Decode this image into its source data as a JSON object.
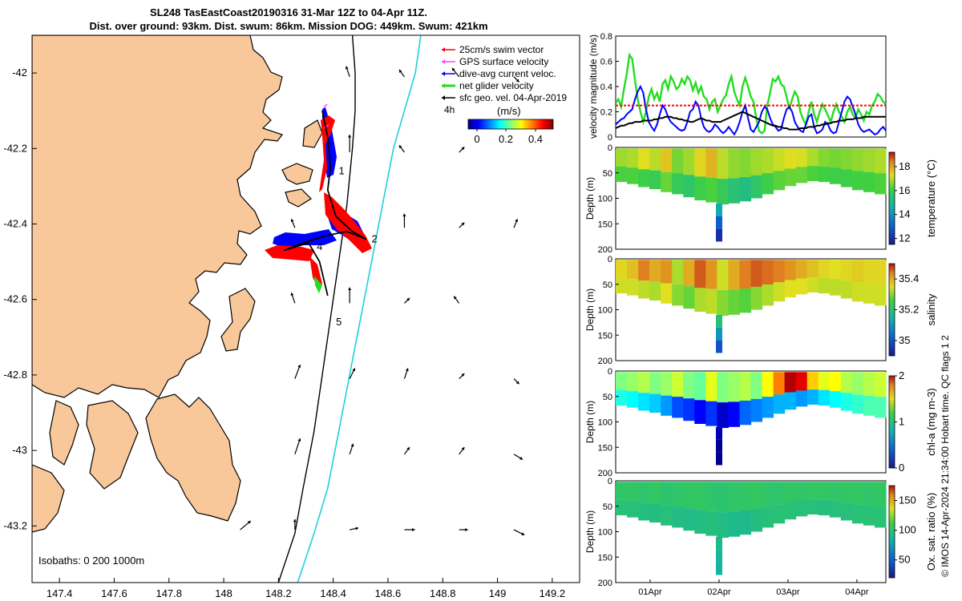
{
  "title_line1": "SL248 TasEastCoast20190316 31-Mar 12Z to 04-Apr 11Z.",
  "title_line2": "Dist. over ground: 93km. Dist. swum: 86km. Mission DOG: 449km. Swum: 421km",
  "footer_credit": "© IMOS 14-Apr-2024 21:34:00 Hobart time. QC flags 1  2",
  "colors": {
    "land": "#f8c89a",
    "coast_outline": "#000000",
    "isobath_200": "#000000",
    "isobath_1000": "#1ed0dc",
    "dive_avg": "#0000ff",
    "glider_net": "#22dd22",
    "swim_vector": "#ff0000",
    "gps_velocity": "#ff44ff",
    "track": "#000000"
  },
  "chart_data": [
    {
      "id": "map",
      "type": "scatter",
      "x_ticks": [
        147.4,
        147.6,
        147.8,
        148,
        148.2,
        148.4,
        148.6,
        148.8,
        149,
        149.2
      ],
      "y_ticks": [
        -42,
        -42.2,
        -42.4,
        -42.6,
        -42.8,
        -43,
        -43.2
      ],
      "xlim": [
        147.3,
        149.3
      ],
      "ylim": [
        -43.35,
        -41.9
      ],
      "isobaths_label": "Isobaths: 0   200   1000m",
      "speed_legend_label": "(m/s)",
      "speed_ticks": [
        "0",
        "0.2",
        "0.4"
      ],
      "time_step_label": "4h",
      "legend": [
        {
          "label": "25cm/s swim vector",
          "color": "#ff0000"
        },
        {
          "label": "GPS surface velocity",
          "color": "#ff44ff"
        },
        {
          "label": "dive-avg current veloc.",
          "color": "#0000ff"
        },
        {
          "label": "net glider velocity",
          "color": "#22dd22"
        },
        {
          "label": "sfc geo. vel. 04-Apr-2019",
          "color": "#000000"
        }
      ],
      "waypoints": [
        {
          "label": "1",
          "lon": 148.42,
          "lat": -42.26
        },
        {
          "label": "2",
          "lon": 148.54,
          "lat": -42.44
        },
        {
          "label": "4",
          "lon": 148.34,
          "lat": -42.46
        },
        {
          "label": "5",
          "lon": 148.41,
          "lat": -42.66
        }
      ],
      "track": [
        [
          148.36,
          -42.1
        ],
        [
          148.38,
          -42.17
        ],
        [
          148.39,
          -42.25
        ],
        [
          148.38,
          -42.31
        ],
        [
          148.41,
          -42.38
        ],
        [
          148.47,
          -42.42
        ],
        [
          148.52,
          -42.44
        ],
        [
          148.45,
          -42.42
        ],
        [
          148.38,
          -42.43
        ],
        [
          148.29,
          -42.45
        ],
        [
          148.22,
          -42.47
        ],
        [
          148.31,
          -42.45
        ],
        [
          148.35,
          -42.5
        ],
        [
          148.37,
          -42.56
        ],
        [
          148.38,
          -42.59
        ]
      ],
      "isobath_200_lon": [
        148.47,
        148.48,
        148.48,
        148.47,
        148.45,
        148.42,
        148.39,
        148.36,
        148.33,
        148.29,
        148.26,
        148.2
      ],
      "isobath_1000_lon": [
        148.72,
        148.7,
        148.66,
        148.62,
        148.58,
        148.54,
        148.5,
        148.46,
        148.42,
        148.38,
        148.33,
        148.27
      ],
      "isobath_lat": [
        -41.9,
        -42.0,
        -42.1,
        -42.2,
        -42.35,
        -42.5,
        -42.65,
        -42.8,
        -42.95,
        -43.1,
        -43.22,
        -43.35
      ],
      "geo_vectors": [
        {
          "lon": 148.46,
          "lat": -42.01,
          "u": -0.02,
          "v": 0.06
        },
        {
          "lon": 148.66,
          "lat": -42.01,
          "u": -0.03,
          "v": 0.04
        },
        {
          "lon": 148.86,
          "lat": -42.01,
          "u": -0.04,
          "v": 0.05
        },
        {
          "lon": 149.06,
          "lat": -42.01,
          "u": 0.03,
          "v": -0.03
        },
        {
          "lon": 148.46,
          "lat": -42.21,
          "u": 0.0,
          "v": 0.1
        },
        {
          "lon": 148.66,
          "lat": -42.21,
          "u": -0.03,
          "v": 0.04
        },
        {
          "lon": 148.86,
          "lat": -42.21,
          "u": 0.03,
          "v": 0.03
        },
        {
          "lon": 148.26,
          "lat": -42.41,
          "u": -0.02,
          "v": 0.05
        },
        {
          "lon": 148.66,
          "lat": -42.41,
          "u": 0.0,
          "v": 0.08
        },
        {
          "lon": 148.86,
          "lat": -42.41,
          "u": 0.03,
          "v": 0.03
        },
        {
          "lon": 149.06,
          "lat": -42.41,
          "u": 0.02,
          "v": 0.05
        },
        {
          "lon": 148.26,
          "lat": -42.61,
          "u": -0.02,
          "v": 0.06
        },
        {
          "lon": 148.46,
          "lat": -42.61,
          "u": 0.0,
          "v": 0.09
        },
        {
          "lon": 148.66,
          "lat": -42.61,
          "u": 0.03,
          "v": 0.03
        },
        {
          "lon": 148.86,
          "lat": -42.61,
          "u": -0.03,
          "v": 0.04
        },
        {
          "lon": 148.26,
          "lat": -42.81,
          "u": 0.03,
          "v": 0.08
        },
        {
          "lon": 148.46,
          "lat": -42.81,
          "u": 0.03,
          "v": 0.06
        },
        {
          "lon": 148.66,
          "lat": -42.81,
          "u": 0.02,
          "v": 0.06
        },
        {
          "lon": 148.86,
          "lat": -42.81,
          "u": 0.03,
          "v": 0.03
        },
        {
          "lon": 149.06,
          "lat": -42.81,
          "u": 0.03,
          "v": -0.03
        },
        {
          "lon": 148.26,
          "lat": -43.01,
          "u": 0.03,
          "v": 0.09
        },
        {
          "lon": 148.46,
          "lat": -43.01,
          "u": 0.02,
          "v": 0.06
        },
        {
          "lon": 148.66,
          "lat": -43.01,
          "u": 0.03,
          "v": 0.04
        },
        {
          "lon": 148.86,
          "lat": -43.01,
          "u": 0.03,
          "v": 0.04
        },
        {
          "lon": 149.06,
          "lat": -43.01,
          "u": 0.05,
          "v": -0.03
        },
        {
          "lon": 148.06,
          "lat": -43.21,
          "u": 0.06,
          "v": 0.05
        },
        {
          "lon": 148.26,
          "lat": -43.21,
          "u": 0.0,
          "v": 0.06
        },
        {
          "lon": 148.46,
          "lat": -43.21,
          "u": 0.05,
          "v": 0.01
        },
        {
          "lon": 148.66,
          "lat": -43.21,
          "u": 0.06,
          "v": 0.0
        },
        {
          "lon": 148.86,
          "lat": -43.21,
          "u": 0.05,
          "v": 0.0
        },
        {
          "lon": 149.06,
          "lat": -43.21,
          "u": 0.06,
          "v": -0.03
        }
      ]
    },
    {
      "id": "velocity",
      "type": "line",
      "ylabel": "velocity magnitude (m/s)",
      "ylim": [
        0,
        0.8
      ],
      "y_ticks": [
        0,
        0.2,
        0.4,
        0.6,
        0.8
      ],
      "x_days": [
        0,
        0.04,
        0.08,
        0.12,
        0.16,
        0.2,
        0.24,
        0.28,
        0.32,
        0.36,
        0.4,
        0.44,
        0.48,
        0.52,
        0.56,
        0.6,
        0.64,
        0.68,
        0.72,
        0.76,
        0.8,
        0.84,
        0.88,
        0.92,
        0.96,
        1.0,
        1.04,
        1.08,
        1.12,
        1.16,
        1.2,
        1.24,
        1.28,
        1.32,
        1.36,
        1.4,
        1.44,
        1.48,
        1.52,
        1.56,
        1.6,
        1.64,
        1.68,
        1.72,
        1.76,
        1.8,
        1.84,
        1.88,
        1.92,
        1.96,
        2.0,
        2.04,
        2.08,
        2.12,
        2.16,
        2.2,
        2.24,
        2.28,
        2.32,
        2.36,
        2.4,
        2.44,
        2.48,
        2.52,
        2.56,
        2.6,
        2.64,
        2.68,
        2.72,
        2.76,
        2.8,
        2.84,
        2.88,
        2.92,
        2.96,
        3.0,
        3.04,
        3.08,
        3.12,
        3.16,
        3.2,
        3.24,
        3.28,
        3.32,
        3.36,
        3.4,
        3.44,
        3.48,
        3.52,
        3.56,
        3.6,
        3.64,
        3.68,
        3.72,
        3.76,
        3.8,
        3.84,
        3.88,
        3.92
      ],
      "series": [
        {
          "name": "net glider velocity",
          "color": "#22dd22",
          "values": [
            0.27,
            0.3,
            0.24,
            0.38,
            0.5,
            0.65,
            0.62,
            0.45,
            0.3,
            0.2,
            0.12,
            0.2,
            0.32,
            0.38,
            0.3,
            0.35,
            0.28,
            0.42,
            0.45,
            0.38,
            0.48,
            0.44,
            0.38,
            0.4,
            0.46,
            0.42,
            0.48,
            0.45,
            0.37,
            0.43,
            0.35,
            0.4,
            0.32,
            0.3,
            0.22,
            0.28,
            0.3,
            0.2,
            0.25,
            0.3,
            0.33,
            0.42,
            0.48,
            0.36,
            0.3,
            0.25,
            0.4,
            0.47,
            0.4,
            0.32,
            0.28,
            0.15,
            0.05,
            0.03,
            0.05,
            0.25,
            0.35,
            0.46,
            0.44,
            0.48,
            0.42,
            0.4,
            0.32,
            0.22,
            0.3,
            0.36,
            0.32,
            0.2,
            0.14,
            0.1,
            0.2,
            0.28,
            0.18,
            0.12,
            0.2,
            0.26,
            0.22,
            0.17,
            0.12,
            0.2,
            0.26,
            0.2,
            0.16,
            0.12,
            0.2,
            0.24,
            0.18,
            0.15,
            0.22,
            0.18,
            0.13,
            0.2,
            0.18,
            0.25,
            0.28,
            0.34,
            0.32,
            0.28,
            0.26
          ]
        },
        {
          "name": "dive-avg current veloc.",
          "color": "#0000ff",
          "values": [
            0.1,
            0.12,
            0.14,
            0.15,
            0.18,
            0.2,
            0.22,
            0.3,
            0.36,
            0.4,
            0.35,
            0.22,
            0.12,
            0.08,
            0.05,
            0.1,
            0.18,
            0.25,
            0.22,
            0.16,
            0.12,
            0.1,
            0.08,
            0.06,
            0.05,
            0.06,
            0.12,
            0.2,
            0.22,
            0.28,
            0.25,
            0.15,
            0.08,
            0.05,
            0.04,
            0.06,
            0.1,
            0.08,
            0.05,
            0.03,
            0.05,
            0.08,
            0.05,
            0.02,
            0.06,
            0.12,
            0.2,
            0.25,
            0.15,
            0.06,
            0.04,
            0.08,
            0.12,
            0.2,
            0.24,
            0.22,
            0.15,
            0.1,
            0.08,
            0.05,
            0.06,
            0.15,
            0.22,
            0.24,
            0.2,
            0.12,
            0.08,
            0.05,
            0.04,
            0.1,
            0.16,
            0.18,
            0.08,
            0.03,
            0.04,
            0.06,
            0.12,
            0.1,
            0.05,
            0.03,
            0.04,
            0.12,
            0.2,
            0.28,
            0.32,
            0.3,
            0.24,
            0.18,
            0.1,
            0.06,
            0.04,
            0.05,
            0.06,
            0.04,
            0.02,
            0.03,
            0.06,
            0.08,
            0.05
          ]
        },
        {
          "name": "sfc geo. vel.",
          "color": "#000000",
          "values": [
            0.07,
            0.08,
            0.09,
            0.09,
            0.1,
            0.11,
            0.11,
            0.12,
            0.12,
            0.12,
            0.13,
            0.13,
            0.13,
            0.13,
            0.14,
            0.14,
            0.15,
            0.15,
            0.16,
            0.16,
            0.16,
            0.15,
            0.15,
            0.14,
            0.14,
            0.13,
            0.13,
            0.12,
            0.12,
            0.13,
            0.14,
            0.15,
            0.14,
            0.13,
            0.13,
            0.12,
            0.12,
            0.12,
            0.12,
            0.13,
            0.14,
            0.15,
            0.16,
            0.17,
            0.18,
            0.19,
            0.2,
            0.19,
            0.18,
            0.17,
            0.16,
            0.15,
            0.14,
            0.13,
            0.12,
            0.11,
            0.1,
            0.09,
            0.09,
            0.08,
            0.08,
            0.07,
            0.07,
            0.06,
            0.06,
            0.06,
            0.06,
            0.07,
            0.07,
            0.07,
            0.08,
            0.08,
            0.08,
            0.09,
            0.09,
            0.1,
            0.1,
            0.11,
            0.11,
            0.12,
            0.12,
            0.13,
            0.13,
            0.13,
            0.14,
            0.14,
            0.14,
            0.15,
            0.15,
            0.15,
            0.16,
            0.16,
            0.16,
            0.16,
            0.16,
            0.16,
            0.16,
            0.16,
            0.16
          ]
        },
        {
          "name": "25cm/s swim vector",
          "color": "#ff0000",
          "constant": 0.25
        }
      ]
    },
    {
      "id": "temperature",
      "type": "heatmap",
      "ylabel": "Depth (m)",
      "cbar_label": "temperature (°C)",
      "clim": [
        11.5,
        19.2
      ],
      "cbar_ticks": [
        "12",
        "14",
        "16",
        "18"
      ],
      "ylim": [
        0,
        200
      ],
      "y_ticks": [
        0,
        50,
        100,
        150,
        200
      ],
      "profile_value": [
        16.8,
        16.9,
        17.3,
        17.0,
        17.6,
        16.5,
        16.8,
        17.4,
        17.8,
        17.0,
        16.7,
        16.6,
        16.8,
        16.9,
        17.1,
        17.3,
        17.2,
        16.9,
        16.6,
        16.5,
        16.6,
        16.7,
        16.8,
        16.9
      ],
      "deep_value": [
        16.2,
        16.2,
        16.0,
        15.9,
        16.4,
        15.8,
        15.6,
        16.0,
        16.2,
        15.8,
        15.4,
        15.2,
        15.6,
        16.0,
        16.3,
        16.4,
        16.4,
        16.2,
        16.1,
        16.0,
        16.0,
        16.1,
        16.1,
        16.2
      ],
      "spike_values": [
        14.5,
        13.0,
        12.0
      ]
    },
    {
      "id": "salinity",
      "type": "heatmap",
      "ylabel": "Depth (m)",
      "cbar_label": "salinity",
      "clim": [
        34.9,
        35.5
      ],
      "cbar_ticks": [
        "35",
        "35.2",
        "35.4"
      ],
      "ylim": [
        0,
        200
      ],
      "y_ticks": [
        0,
        50,
        100,
        150,
        200
      ],
      "profile_value": [
        35.36,
        35.38,
        35.44,
        35.4,
        35.42,
        35.32,
        35.4,
        35.46,
        35.42,
        35.34,
        35.4,
        35.44,
        35.46,
        35.45,
        35.44,
        35.42,
        35.4,
        35.38,
        35.36,
        35.35,
        35.36,
        35.37,
        35.36,
        35.36
      ],
      "deep_value": [
        35.34,
        35.34,
        35.33,
        35.32,
        35.35,
        35.3,
        35.28,
        35.32,
        35.33,
        35.3,
        35.28,
        35.27,
        35.3,
        35.32,
        35.34,
        35.35,
        35.35,
        35.34,
        35.33,
        35.33,
        35.33,
        35.34,
        35.34,
        35.34
      ],
      "spike_values": [
        35.2,
        35.1,
        35.0
      ]
    },
    {
      "id": "chla",
      "type": "heatmap",
      "ylabel": "Depth (m)",
      "cbar_label": "chl-a (mg m-3)",
      "clim": [
        0,
        2
      ],
      "cbar_ticks": [
        "0",
        "1",
        "2"
      ],
      "ylim": [
        0,
        200
      ],
      "y_ticks": [
        0,
        50,
        100,
        150,
        200
      ],
      "profile_value": [
        1.0,
        1.05,
        1.1,
        1.0,
        1.05,
        1.15,
        1.0,
        0.95,
        1.2,
        1.0,
        1.05,
        1.1,
        1.0,
        1.25,
        1.5,
        1.9,
        1.8,
        1.35,
        1.2,
        1.25,
        1.1,
        1.05,
        1.1,
        1.15
      ],
      "deep_value": [
        0.8,
        0.75,
        0.7,
        0.65,
        0.55,
        0.4,
        0.35,
        0.25,
        0.35,
        0.15,
        0.25,
        0.45,
        0.5,
        0.55,
        0.6,
        0.6,
        0.55,
        0.6,
        0.7,
        0.75,
        0.8,
        0.85,
        0.9,
        0.9
      ],
      "spike_values": [
        0.1,
        0.05,
        0.02
      ]
    },
    {
      "id": "oxygen",
      "type": "heatmap",
      "ylabel": "Depth (m)",
      "cbar_label": "Ox. sat. ratio (%)",
      "clim": [
        20,
        175
      ],
      "cbar_ticks": [
        "50",
        "100",
        "150"
      ],
      "ylim": [
        0,
        200
      ],
      "y_ticks": [
        0,
        50,
        100,
        150,
        200
      ],
      "profile_value": [
        102,
        103,
        101,
        104,
        100,
        102,
        103,
        104,
        101,
        100,
        102,
        103,
        104,
        102,
        101,
        103,
        102,
        104,
        103,
        102,
        103,
        104,
        102,
        103
      ],
      "deep_value": [
        98,
        97,
        96,
        95,
        97,
        94,
        93,
        95,
        96,
        94,
        92,
        92,
        95,
        97,
        98,
        98,
        97,
        97,
        96,
        97,
        97,
        98,
        98,
        98
      ],
      "spike_values": [
        92,
        88,
        86
      ]
    },
    {
      "id": "time_axis",
      "type": "line",
      "x_tick_labels": [
        "01Apr",
        "02Apr",
        "03Apr",
        "04Apr"
      ],
      "x_tick_days": [
        0.5,
        1.5,
        2.5,
        3.5
      ]
    }
  ]
}
